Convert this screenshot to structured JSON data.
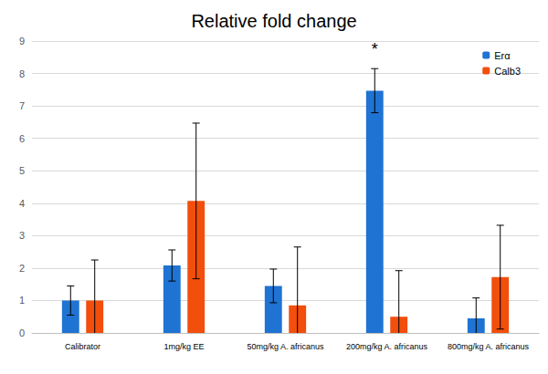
{
  "chart_data": {
    "type": "bar",
    "title": "Relative fold change",
    "categories": [
      "Calibrator",
      "1mg/kg EE",
      "50mg/kg A. africanus",
      "200mg/kg A. africanus",
      "800mg/kg A. africanus"
    ],
    "series": [
      {
        "name": "Erα",
        "color": "#1f73d3",
        "values": [
          1.0,
          2.08,
          1.45,
          7.47,
          0.45
        ],
        "errors": [
          0.45,
          0.48,
          0.52,
          0.68,
          0.63
        ]
      },
      {
        "name": "Calb3",
        "color": "#f24e0c",
        "values": [
          1.0,
          4.07,
          0.85,
          0.5,
          1.72
        ],
        "errors": [
          1.25,
          2.4,
          1.8,
          1.42,
          1.6
        ]
      }
    ],
    "annotations": [
      {
        "text": "*",
        "category": "200mg/kg A. africanus",
        "series": "Erα",
        "y": 8.75
      }
    ],
    "ylim": [
      0,
      9
    ],
    "yticks": [
      0,
      1,
      2,
      3,
      4,
      5,
      6,
      7,
      8,
      9
    ],
    "grid": true,
    "legend": "upper right"
  }
}
